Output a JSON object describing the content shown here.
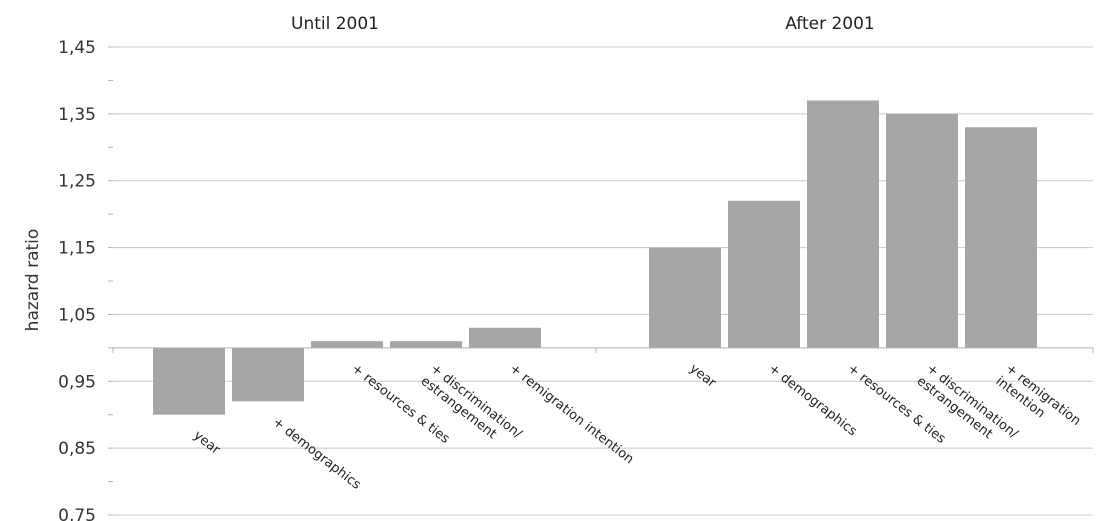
{
  "chart_data": {
    "type": "bar",
    "title": "",
    "ylabel": "hazard ratio",
    "ylim": [
      0.75,
      1.45
    ],
    "baseline": 1.0,
    "y_ticks": [
      "1,45",
      "1,35",
      "1,25",
      "1,15",
      "1,05",
      "0,95",
      "0,85",
      "0,75"
    ],
    "y_tick_values": [
      1.45,
      1.35,
      1.25,
      1.15,
      1.05,
      0.95,
      0.85,
      0.75
    ],
    "grid": true,
    "groups": [
      {
        "title": "Until 2001",
        "categories": [
          [
            "year"
          ],
          [
            "+ demographics"
          ],
          [
            "+ resources & ties"
          ],
          [
            "+ discrimination/",
            "estrangement"
          ],
          [
            "+ remigration intention"
          ]
        ],
        "values": [
          0.9,
          0.92,
          1.01,
          1.01,
          1.03
        ]
      },
      {
        "title": "After 2001",
        "categories": [
          [
            "year"
          ],
          [
            "+ demographics"
          ],
          [
            "+ resources & ties"
          ],
          [
            "+ discrimination/",
            "estrangement"
          ],
          [
            "+ remigration",
            "intention"
          ]
        ],
        "values": [
          1.15,
          1.22,
          1.37,
          1.35,
          1.33
        ]
      }
    ]
  }
}
